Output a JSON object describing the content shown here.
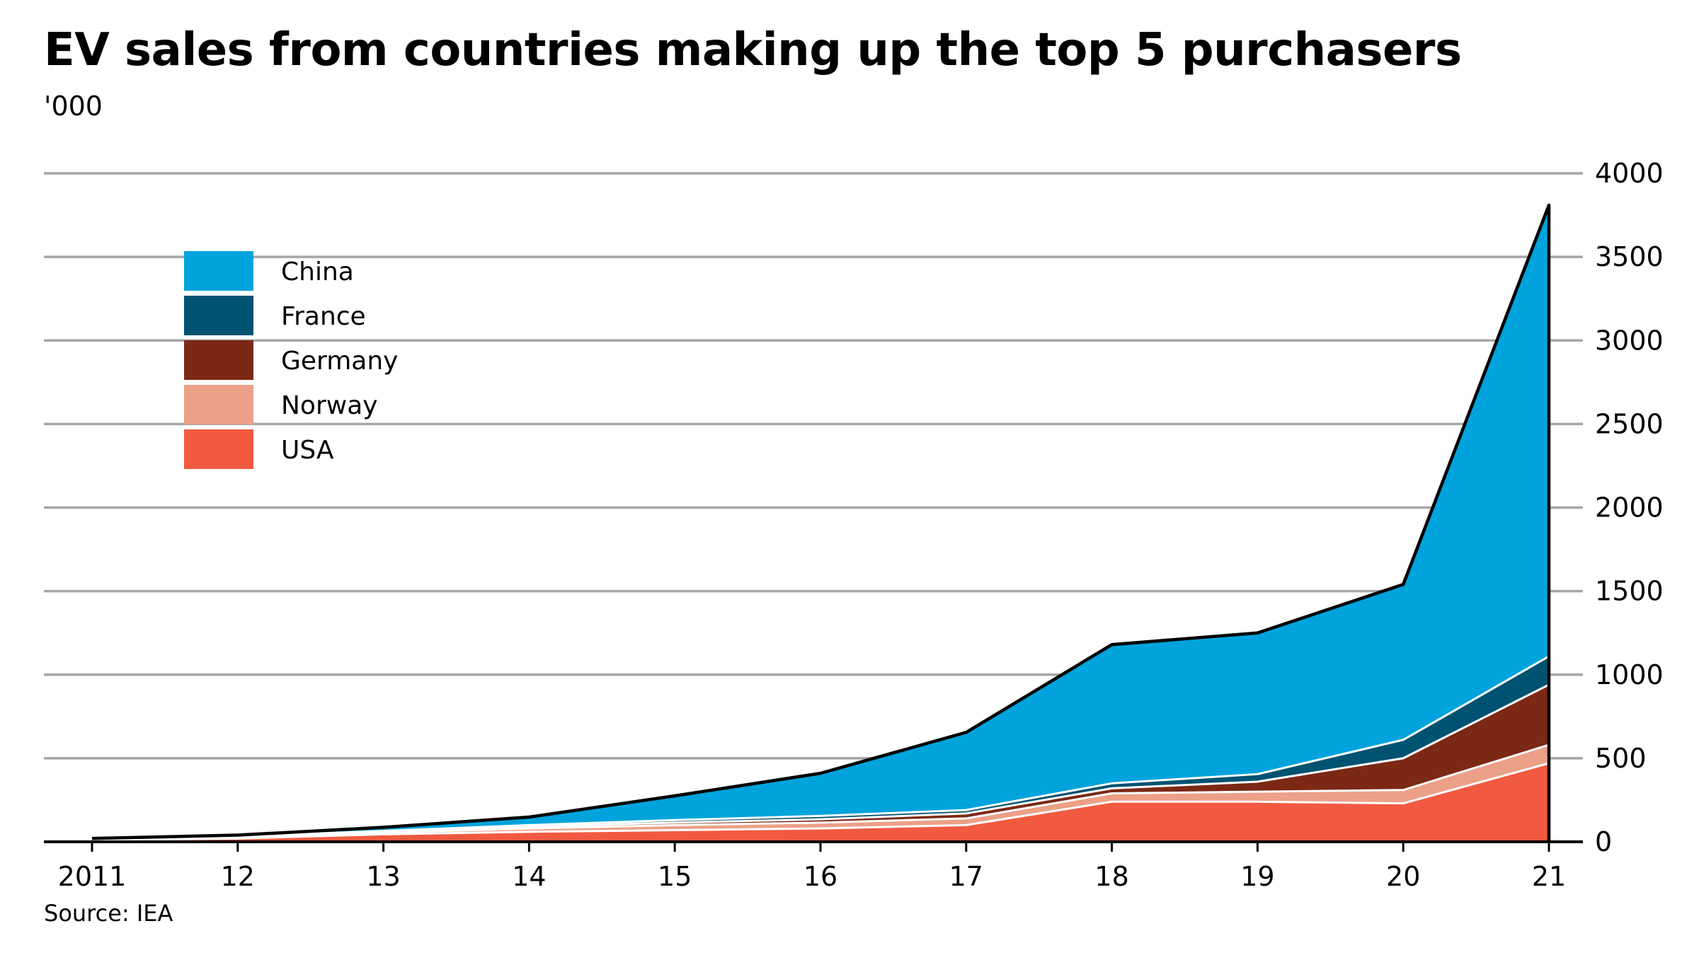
{
  "chart_data": {
    "type": "area",
    "stacked": true,
    "title": "EV sales from countries making up the top 5 purchasers",
    "subtitle": "'000",
    "source": "Source: IEA",
    "x": [
      2011,
      2012,
      2013,
      2014,
      2015,
      2016,
      2017,
      2018,
      2019,
      2020,
      2021
    ],
    "x_tick_labels": [
      "2011",
      "12",
      "13",
      "14",
      "15",
      "16",
      "17",
      "18",
      "19",
      "20",
      "21"
    ],
    "y_ticks": [
      0,
      500,
      1000,
      1500,
      2000,
      2500,
      3000,
      3500,
      4000
    ],
    "ylim": [
      0,
      4000
    ],
    "y_axis_side": "right",
    "grid": true,
    "legend_position": "top-left",
    "series": [
      {
        "name": "USA",
        "color": "#f15a40",
        "values": [
          10,
          20,
          45,
          60,
          70,
          80,
          100,
          240,
          240,
          230,
          470
        ]
      },
      {
        "name": "Norway",
        "color": "#eca088",
        "values": [
          5,
          5,
          10,
          20,
          30,
          35,
          40,
          50,
          60,
          80,
          110
        ]
      },
      {
        "name": "Germany",
        "color": "#7b2815",
        "values": [
          2,
          3,
          5,
          10,
          15,
          20,
          30,
          30,
          60,
          190,
          360
        ]
      },
      {
        "name": "France",
        "color": "#005271",
        "values": [
          2,
          3,
          5,
          10,
          15,
          20,
          20,
          30,
          45,
          110,
          170
        ]
      },
      {
        "name": "China",
        "color": "#00a3dc",
        "values": [
          1,
          9,
          22,
          48,
          145,
          255,
          465,
          830,
          845,
          930,
          2700
        ]
      }
    ],
    "total_line_color": "#000000",
    "legend_order": [
      "China",
      "France",
      "Germany",
      "Norway",
      "USA"
    ]
  }
}
